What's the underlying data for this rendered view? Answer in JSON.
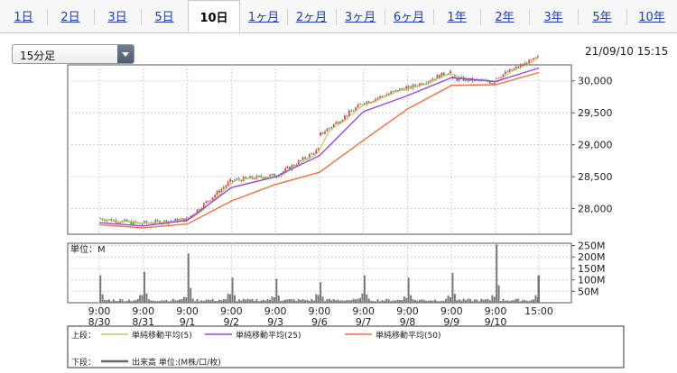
{
  "tabs": [
    "1日",
    "2日",
    "3日",
    "5日",
    "10日",
    "1ヶ月",
    "2ヶ月",
    "3ヶ月",
    "6ヶ月",
    "1年",
    "2年",
    "3年",
    "5年",
    "10年"
  ],
  "active_tab": "10日",
  "interval_select": {
    "value": "15分足"
  },
  "timestamp": "21/09/10 15:15",
  "volume_panel_label": "単位：M",
  "legend": {
    "upper_label": "上段：",
    "lower_label": "下段：",
    "volume_label": "出来高 単位:(M株/口/枚)",
    "items": [
      {
        "name": "単純移動平均(5)",
        "color": "#b5cf6b"
      },
      {
        "name": "単純移動平均(25)",
        "color": "#9a48d6"
      },
      {
        "name": "単純移動平均(50)",
        "color": "#e8734a"
      }
    ]
  },
  "chart_data": [
    {
      "type": "candlestick",
      "title": "",
      "interval": "15分足",
      "x_tick_labels": [
        {
          "time": "9:00",
          "date": "8/30"
        },
        {
          "time": "9:00",
          "date": "8/31"
        },
        {
          "time": "9:00",
          "date": "9/1"
        },
        {
          "time": "9:00",
          "date": "9/2"
        },
        {
          "time": "9:00",
          "date": "9/3"
        },
        {
          "time": "9:00",
          "date": "9/6"
        },
        {
          "time": "9:00",
          "date": "9/7"
        },
        {
          "time": "9:00",
          "date": "9/8"
        },
        {
          "time": "9:00",
          "date": "9/9"
        },
        {
          "time": "9:00",
          "date": "9/10"
        },
        {
          "time": "15:00",
          "date": ""
        }
      ],
      "y_ticks": [
        "30,000",
        "29,500",
        "29,000",
        "28,500",
        "28,000"
      ],
      "y_tick_values": [
        30000,
        29500,
        29000,
        28500,
        28000
      ],
      "ylim": [
        27600,
        30250
      ],
      "daily_close_approx": [
        {
          "date": "8/30",
          "open": 27850,
          "close": 27760
        },
        {
          "date": "8/31",
          "open": 27770,
          "close": 27830
        },
        {
          "date": "9/1",
          "open": 27830,
          "close": 28430
        },
        {
          "date": "9/2",
          "open": 28440,
          "close": 28520
        },
        {
          "date": "9/3",
          "open": 28500,
          "close": 28920
        },
        {
          "date": "9/6",
          "open": 29140,
          "close": 29650
        },
        {
          "date": "9/7",
          "open": 29650,
          "close": 29900
        },
        {
          "date": "9/8",
          "open": 29870,
          "close": 30150
        },
        {
          "date": "9/9",
          "open": 30040,
          "close": 29980
        },
        {
          "date": "9/10",
          "open": 30040,
          "close": 30360
        }
      ],
      "series": [
        {
          "name": "単純移動平均(5)",
          "color": "#b5cf6b"
        },
        {
          "name": "単純移動平均(25)",
          "color": "#9a48d6",
          "values_at_ticks": [
            27780,
            27730,
            27820,
            28330,
            28500,
            28830,
            29520,
            29770,
            30050,
            29990,
            30200
          ]
        },
        {
          "name": "単純移動平均(50)",
          "color": "#e8734a",
          "values_at_ticks": [
            27750,
            27700,
            27760,
            28120,
            28380,
            28570,
            29070,
            29560,
            29930,
            29940,
            30130
          ]
        }
      ]
    },
    {
      "type": "bar",
      "title": "",
      "unit": "M",
      "y_ticks": [
        "250M",
        "200M",
        "150M",
        "100M",
        "50M"
      ],
      "y_tick_values": [
        250,
        200,
        150,
        100,
        50
      ],
      "ylim": [
        0,
        260
      ],
      "daily_opening_volume_peaks": [
        {
          "date": "8/30",
          "value": 120
        },
        {
          "date": "8/31",
          "value": 135
        },
        {
          "date": "9/1",
          "value": 215
        },
        {
          "date": "9/2",
          "value": 110
        },
        {
          "date": "9/3",
          "value": 105
        },
        {
          "date": "9/6",
          "value": 90
        },
        {
          "date": "9/7",
          "value": 120
        },
        {
          "date": "9/8",
          "value": 110
        },
        {
          "date": "9/9",
          "value": 130
        },
        {
          "date": "9/10",
          "value": 255
        }
      ],
      "final_bar": 120
    }
  ]
}
